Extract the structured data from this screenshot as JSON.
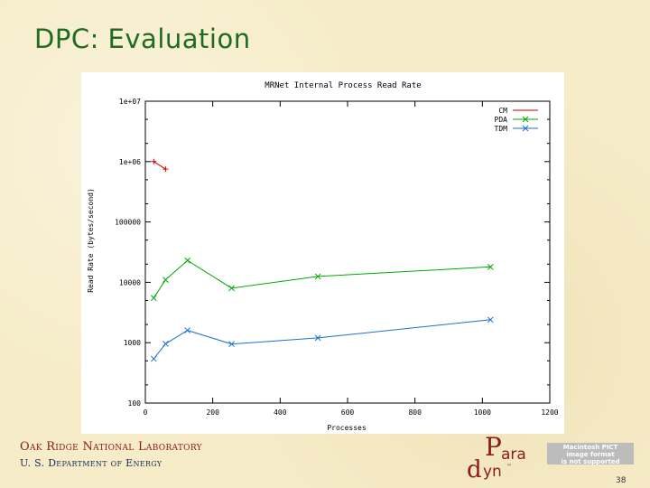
{
  "slide": {
    "title": "DPC: Evaluation",
    "footer_lab": "Oak Ridge National Laboratory",
    "footer_doe": "U. S. Department of Energy",
    "page_number": "38",
    "logo_top": "ara",
    "logo_bottom": "yn",
    "logo_p": "P",
    "logo_d": "d",
    "logo_tm": "™",
    "pict_lines": [
      "Macintosh PICT",
      "image format",
      "is not supported"
    ]
  },
  "colors": {
    "title": "#1f6b1f",
    "cm": "#cc0000",
    "pda": "#00aa00",
    "tdm": "#1f6fd0",
    "axis": "#000000"
  },
  "chart_data": {
    "type": "line",
    "title": "MRNet Internal Process Read Rate",
    "xlabel": "Processes",
    "ylabel": "Read Rate (bytes/second)",
    "xlim": [
      0,
      1200
    ],
    "ylim": [
      100,
      10000000
    ],
    "yscale": "log",
    "x_ticks": [
      0,
      200,
      400,
      600,
      800,
      1000,
      1200
    ],
    "x_tick_labels": [
      "0",
      "200",
      "400",
      "600",
      "800",
      "1000",
      "1200"
    ],
    "y_ticks": [
      100,
      1000,
      10000,
      100000,
      1000000,
      10000000
    ],
    "y_tick_labels": [
      "100",
      "1000",
      "10000",
      "100000",
      "1e+06",
      "1e+07"
    ],
    "grid": false,
    "legend_position": "top-right",
    "series": [
      {
        "name": "CM",
        "marker": "+",
        "x": [
          25,
          60
        ],
        "y": [
          1000000,
          750000
        ]
      },
      {
        "name": "PDA",
        "marker": "x",
        "x": [
          25,
          60,
          125,
          256,
          512,
          1024
        ],
        "y": [
          5500,
          11000,
          23000,
          8000,
          12500,
          18000
        ]
      },
      {
        "name": "TDM",
        "marker": "x",
        "x": [
          25,
          60,
          125,
          256,
          512,
          1024
        ],
        "y": [
          540,
          960,
          1600,
          950,
          1200,
          2400
        ]
      }
    ]
  }
}
